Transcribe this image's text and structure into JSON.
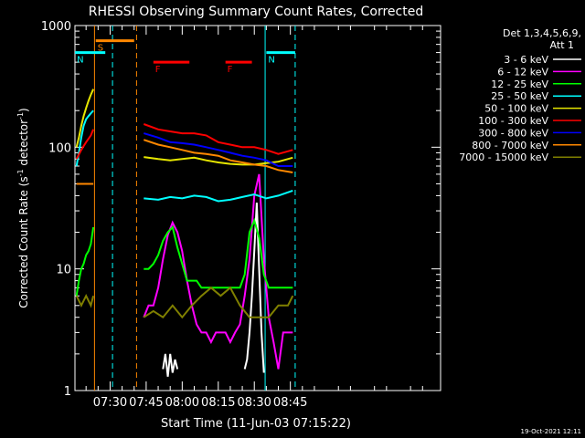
{
  "chart_data": {
    "type": "line",
    "title": "RHESSI Observing Summary Count Rates, Corrected",
    "xlabel": "Start Time (11-Jun-03 07:15:22)",
    "ylabel_parts": [
      "Corrected Count Rate (s",
      "-1",
      " detector",
      "-1",
      ")"
    ],
    "yscale": "log",
    "ylim": [
      1,
      1000
    ],
    "yticks": [
      {
        "v": 1,
        "label": "1"
      },
      {
        "v": 10,
        "label": "10"
      },
      {
        "v": 100,
        "label": "100"
      },
      {
        "v": 1000,
        "label": "1000"
      }
    ],
    "xlim_min": [
      15.37,
      167.5
    ],
    "xticks": [
      {
        "m": 30,
        "label": "07:30"
      },
      {
        "m": 45,
        "label": "07:45"
      },
      {
        "m": 60,
        "label": "08:00"
      },
      {
        "m": 75,
        "label": "08:15"
      },
      {
        "m": 90,
        "label": "08:30"
      },
      {
        "m": 105,
        "label": "08:45"
      }
    ],
    "legend_header": [
      "Det 1,3,4,5,6,9,",
      "Att 1"
    ],
    "series": [
      {
        "name": "3 - 6 keV",
        "color": "#ffffff",
        "segments": [
          {
            "x": [
              52,
              53,
              54,
              55,
              56,
              57,
              58
            ],
            "y": [
              1.5,
              2,
              1.3,
              2,
              1.4,
              1.8,
              1.5
            ]
          },
          {
            "x": [
              86,
              87,
              88,
              89,
              90,
              91,
              92,
              93,
              94
            ],
            "y": [
              1.5,
              1.8,
              3,
              6,
              14,
              35,
              10,
              3,
              1.4
            ]
          }
        ]
      },
      {
        "name": "6 - 12 keV",
        "color": "#ff00ff",
        "segments": [
          {
            "x": [
              44,
              46,
              48,
              50,
              52,
              54,
              56,
              58,
              60,
              62,
              64,
              66,
              68,
              70,
              72,
              74,
              76,
              78,
              80,
              82,
              84,
              86,
              88,
              90,
              92,
              94,
              96,
              98,
              100,
              102,
              104,
              106
            ],
            "y": [
              4,
              5,
              5,
              7,
              12,
              19,
              24,
              20,
              14,
              8,
              5,
              3.5,
              3,
              3,
              2.5,
              3,
              3,
              3,
              2.5,
              3,
              3.5,
              6,
              12,
              40,
              60,
              12,
              4,
              2.5,
              1.5,
              3,
              3,
              3
            ]
          }
        ]
      },
      {
        "name": "12 - 25 keV",
        "color": "#00ff00",
        "segments": [
          {
            "x": [
              16,
              17,
              18,
              19,
              20,
              21,
              22,
              23
            ],
            "y": [
              6,
              8,
              10,
              11,
              13,
              14,
              16,
              22
            ]
          },
          {
            "x": [
              44,
              46,
              48,
              50,
              52,
              54,
              56,
              58,
              60,
              62,
              64,
              66,
              68,
              70,
              72,
              74,
              76,
              78,
              80,
              82,
              84,
              86,
              88,
              90,
              92,
              94,
              96,
              98,
              100,
              102,
              104,
              106
            ],
            "y": [
              10,
              10,
              11,
              13,
              17,
              20,
              22,
              15,
              11,
              8,
              8,
              8,
              7,
              7,
              7,
              7,
              7,
              7,
              7,
              7,
              7,
              9,
              20,
              25,
              18,
              9,
              7,
              7,
              7,
              7,
              7,
              7
            ]
          }
        ]
      },
      {
        "name": "25 - 50 keV",
        "color": "#00ffff",
        "segments": [
          {
            "x": [
              16,
              17,
              18,
              19,
              20,
              21,
              22,
              23
            ],
            "y": [
              70,
              90,
              120,
              150,
              170,
              180,
              190,
              200
            ]
          },
          {
            "x": [
              44,
              50,
              55,
              60,
              65,
              70,
              75,
              80,
              85,
              90,
              95,
              100,
              106
            ],
            "y": [
              38,
              37,
              39,
              38,
              40,
              39,
              36,
              37,
              39,
              41,
              38,
              40,
              44
            ]
          }
        ]
      },
      {
        "name": "50 - 100 keV",
        "color": "#e6e600",
        "segments": [
          {
            "x": [
              16,
              17,
              18,
              19,
              20,
              21,
              22,
              23
            ],
            "y": [
              100,
              120,
              150,
              180,
              210,
              240,
              270,
              300
            ]
          },
          {
            "x": [
              44,
              50,
              55,
              60,
              65,
              70,
              75,
              80,
              85,
              90,
              95,
              100,
              106
            ],
            "y": [
              83,
              80,
              78,
              80,
              82,
              78,
              75,
              73,
              72,
              72,
              74,
              76,
              82
            ]
          }
        ]
      },
      {
        "name": "100 - 300 keV",
        "color": "#ff0000",
        "segments": [
          {
            "x": [
              16,
              18,
              20,
              22,
              23
            ],
            "y": [
              80,
              95,
              110,
              125,
              140
            ]
          },
          {
            "x": [
              44,
              50,
              55,
              60,
              65,
              70,
              75,
              80,
              85,
              90,
              95,
              100,
              106
            ],
            "y": [
              155,
              140,
              135,
              130,
              130,
              125,
              110,
              105,
              100,
              100,
              95,
              88,
              95
            ]
          }
        ]
      },
      {
        "name": "300 - 800 keV",
        "color": "#0000ff",
        "segments": [
          {
            "x": [
              44,
              50,
              55,
              60,
              65,
              70,
              75,
              80,
              85,
              90,
              95,
              100,
              106
            ],
            "y": [
              130,
              120,
              110,
              108,
              105,
              100,
              95,
              90,
              85,
              82,
              78,
              70,
              70
            ]
          }
        ]
      },
      {
        "name": "800 - 7000 keV",
        "color": "#ff8800",
        "segments": [
          {
            "x": [
              16,
              18,
              20,
              22,
              23
            ],
            "y": [
              50,
              50,
              50,
              50,
              50
            ]
          },
          {
            "x": [
              44,
              50,
              55,
              60,
              65,
              70,
              75,
              80,
              85,
              90,
              95,
              100,
              106
            ],
            "y": [
              115,
              105,
              100,
              95,
              90,
              88,
              85,
              78,
              75,
              72,
              70,
              65,
              62
            ]
          }
        ]
      },
      {
        "name": "7000 - 15000 keV",
        "color": "#808000",
        "segments": [
          {
            "x": [
              16,
              18,
              20,
              22,
              23
            ],
            "y": [
              6,
              5,
              6,
              5,
              6
            ]
          },
          {
            "x": [
              44,
              48,
              52,
              56,
              60,
              64,
              68,
              72,
              76,
              80,
              84,
              88,
              92,
              96,
              100,
              104,
              106
            ],
            "y": [
              4,
              4.5,
              4,
              5,
              4,
              5,
              6,
              7,
              6,
              7,
              5,
              4,
              4,
              4,
              5,
              5,
              6
            ]
          }
        ]
      }
    ],
    "annotations": [
      {
        "label": "S",
        "color": "#ff8800",
        "x": [
          24,
          40
        ],
        "y": 750
      },
      {
        "label": "N",
        "color": "#00ffff",
        "x": [
          15.4,
          28
        ],
        "y": 600
      },
      {
        "label": "N",
        "color": "#00ffff",
        "x": [
          95,
          107
        ],
        "y": 600
      },
      {
        "label": "F",
        "color": "#ff0000",
        "x": [
          48,
          63
        ],
        "y": 500
      },
      {
        "label": "F",
        "color": "#ff0000",
        "x": [
          78,
          89
        ],
        "y": 500
      }
    ],
    "vlines": [
      {
        "x": 23.5,
        "color": "#ff8800",
        "style": "solid"
      },
      {
        "x": 31,
        "color": "#00ffff",
        "style": "dashed"
      },
      {
        "x": 41,
        "color": "#ff8800",
        "style": "dashed"
      },
      {
        "x": 94.5,
        "color": "#00ffff",
        "style": "solid"
      },
      {
        "x": 107,
        "color": "#00ffff",
        "style": "dashed"
      }
    ]
  },
  "footer_date": "19-Oct-2021 12:11"
}
